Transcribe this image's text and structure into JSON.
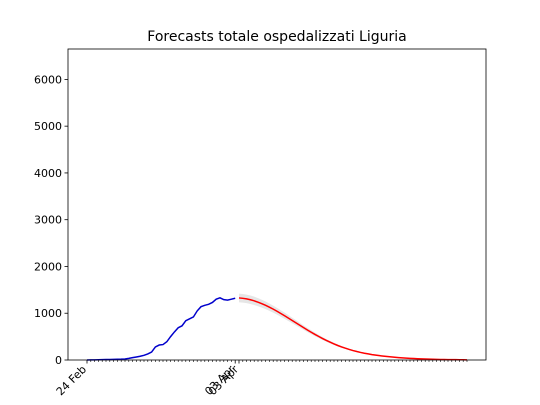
{
  "chart_data": {
    "type": "line",
    "title": "Forecasts totale ospedalizzati Liguria",
    "categories": [
      "24 Feb",
      null,
      null,
      null,
      null,
      null,
      null,
      null,
      null,
      null,
      null,
      null,
      null,
      null,
      null,
      null,
      null,
      null,
      null,
      null,
      null,
      null,
      null,
      null,
      null,
      null,
      null,
      null,
      null,
      null,
      null,
      null,
      null,
      null,
      null,
      null,
      null,
      null,
      null,
      "03 Apr",
      "03 Apr",
      null,
      null,
      null,
      null,
      null,
      null,
      null,
      null,
      null,
      null,
      null,
      null,
      null,
      null,
      null,
      null,
      null,
      null,
      null,
      null,
      null,
      null,
      null,
      null,
      null,
      null,
      null,
      null,
      null,
      null,
      null,
      null,
      null,
      null,
      null,
      null,
      null,
      null,
      null,
      null,
      null,
      null,
      null,
      null,
      null,
      null,
      null,
      null,
      null,
      null,
      null,
      null,
      null,
      null,
      null,
      null,
      null,
      null,
      null,
      null
    ],
    "series": [
      {
        "color": "#0000cc",
        "values": [
          0,
          2,
          3,
          5,
          8,
          10,
          12,
          14,
          16,
          18,
          22,
          35,
          50,
          65,
          80,
          100,
          130,
          170,
          280,
          320,
          330,
          390,
          500,
          600,
          690,
          730,
          840,
          880,
          920,
          1050,
          1140,
          1170,
          1190,
          1230,
          1300,
          1330,
          1290,
          1280,
          1300,
          1320,
          null,
          null,
          null,
          null,
          null,
          null,
          null,
          null,
          null,
          null,
          null,
          null,
          null,
          null,
          null,
          null,
          null,
          null,
          null,
          null,
          null,
          null,
          null,
          null,
          null,
          null,
          null,
          null,
          null,
          null,
          null,
          null,
          null,
          null,
          null,
          null,
          null,
          null,
          null,
          null,
          null,
          null,
          null,
          null,
          null,
          null,
          null,
          null,
          null,
          null,
          null,
          null,
          null,
          null,
          null,
          null,
          null,
          null,
          null,
          null,
          null
        ]
      },
      {
        "color": "#ff0000",
        "values": [
          null,
          null,
          null,
          null,
          null,
          null,
          null,
          null,
          null,
          null,
          null,
          null,
          null,
          null,
          null,
          null,
          null,
          null,
          null,
          null,
          null,
          null,
          null,
          null,
          null,
          null,
          null,
          null,
          null,
          null,
          null,
          null,
          null,
          null,
          null,
          null,
          null,
          null,
          null,
          null,
          1327,
          1319,
          1306,
          1288,
          1265,
          1237,
          1205,
          1169,
          1130,
          1088,
          1042,
          995,
          946,
          896,
          845,
          794,
          743,
          692,
          642,
          594,
          547,
          502,
          459,
          418,
          380,
          344,
          310,
          280,
          252,
          226,
          202,
          181,
          162,
          145,
          130,
          116,
          104,
          93,
          83,
          74,
          66,
          58,
          51,
          45,
          40,
          35,
          31,
          27,
          24,
          21,
          18,
          16,
          14,
          12,
          10,
          9,
          8,
          7,
          6,
          5,
          4
        ]
      }
    ],
    "band": {
      "color": "#e0e0e0",
      "upper": [
        null,
        null,
        null,
        null,
        null,
        null,
        null,
        null,
        null,
        null,
        null,
        null,
        null,
        null,
        null,
        null,
        null,
        null,
        null,
        null,
        null,
        null,
        null,
        null,
        null,
        null,
        null,
        null,
        null,
        null,
        null,
        null,
        null,
        null,
        null,
        null,
        null,
        null,
        null,
        null,
        1420,
        1411,
        1397,
        1378,
        1354,
        1324,
        1289,
        1251,
        1209,
        1164,
        1115,
        1065,
        1012,
        959,
        904,
        850,
        795,
        740,
        687,
        636,
        585,
        537,
        491,
        447,
        407,
        368,
        332,
        300,
        270,
        242,
        216,
        194,
        173,
        155,
        139,
        124,
        111,
        100,
        89,
        79,
        71,
        62,
        55,
        48,
        43,
        37,
        33,
        29,
        26,
        22,
        19,
        17,
        15,
        13,
        11,
        10,
        9,
        7,
        6,
        5,
        4
      ],
      "lower": [
        null,
        null,
        null,
        null,
        null,
        null,
        null,
        null,
        null,
        null,
        null,
        null,
        null,
        null,
        null,
        null,
        null,
        null,
        null,
        null,
        null,
        null,
        null,
        null,
        null,
        null,
        null,
        null,
        null,
        null,
        null,
        null,
        null,
        null,
        null,
        null,
        null,
        null,
        null,
        null,
        1234,
        1227,
        1215,
        1198,
        1176,
        1150,
        1121,
        1087,
        1051,
        1012,
        969,
        925,
        880,
        833,
        786,
        738,
        691,
        644,
        597,
        552,
        509,
        467,
        427,
        389,
        353,
        320,
        288,
        260,
        234,
        210,
        188,
        168,
        151,
        135,
        121,
        108,
        97,
        86,
        77,
        69,
        61,
        54,
        47,
        42,
        37,
        33,
        29,
        25,
        22,
        20,
        17,
        15,
        13,
        11,
        9,
        8,
        7,
        7,
        6,
        5,
        4
      ]
    },
    "ylim": [
      0,
      6650
    ],
    "yticks": [
      0,
      1000,
      2000,
      3000,
      4000,
      5000,
      6000
    ],
    "grid": false
  }
}
